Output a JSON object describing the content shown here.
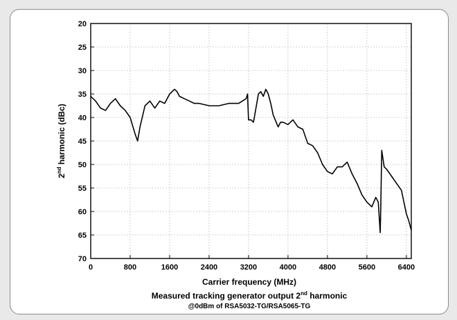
{
  "chart_data": {
    "type": "line",
    "xlabel": "Carrier frequency (MHz)",
    "ylabel_main": "2",
    "ylabel_sup": "nd",
    "ylabel_rest": " harmonic (dBc)",
    "caption_line1_main": "Measured tracking generator output 2",
    "caption_line1_sup": "nd",
    "caption_line1_rest": " harmonic",
    "caption_line2": "@0dBm of RSA5032-TG/RSA5065-TG",
    "xlim": [
      0,
      6500
    ],
    "ylim": [
      20,
      70
    ],
    "y_inverted": true,
    "grid": true,
    "x_ticks": [
      0,
      800,
      1600,
      2400,
      3200,
      4000,
      4800,
      5600,
      6400
    ],
    "y_ticks": [
      20,
      25,
      30,
      35,
      40,
      45,
      50,
      55,
      60,
      65,
      70
    ],
    "series": [
      {
        "color": "#000000",
        "x": [
          0,
          100,
          200,
          300,
          400,
          500,
          600,
          700,
          800,
          900,
          950,
          1000,
          1100,
          1200,
          1300,
          1400,
          1500,
          1550,
          1600,
          1700,
          1750,
          1800,
          1900,
          2000,
          2100,
          2200,
          2400,
          2600,
          2800,
          3000,
          3150,
          3180,
          3200,
          3250,
          3300,
          3400,
          3450,
          3500,
          3550,
          3600,
          3650,
          3700,
          3800,
          3850,
          3900,
          4000,
          4100,
          4200,
          4300,
          4400,
          4500,
          4600,
          4700,
          4800,
          4900,
          5000,
          5100,
          5200,
          5300,
          5400,
          5500,
          5600,
          5700,
          5780,
          5830,
          5870,
          5880,
          5900,
          5950,
          6000,
          6100,
          6200,
          6300,
          6350,
          6400,
          6450,
          6500
        ],
        "values": [
          35.5,
          36.5,
          38.0,
          38.5,
          37.0,
          36.0,
          37.5,
          38.5,
          40.0,
          43.5,
          45.0,
          42.0,
          37.5,
          36.5,
          38.0,
          36.5,
          37.0,
          36.0,
          35.0,
          34.0,
          34.5,
          35.5,
          36.0,
          36.5,
          37.0,
          37.0,
          37.5,
          37.5,
          37.0,
          37.0,
          36.0,
          35.0,
          40.5,
          40.5,
          41.0,
          35.0,
          34.5,
          35.5,
          34.0,
          35.0,
          37.0,
          39.5,
          42.0,
          41.0,
          41.0,
          41.5,
          40.5,
          42.0,
          42.5,
          45.5,
          46.0,
          47.5,
          50.0,
          51.5,
          52.0,
          50.5,
          50.5,
          49.5,
          52.0,
          54.0,
          56.5,
          58.0,
          59.0,
          57.0,
          58.0,
          64.5,
          60.0,
          47.0,
          50.5,
          51.0,
          52.5,
          54.0,
          55.5,
          58.0,
          60.5,
          62.0,
          64.0
        ]
      }
    ]
  }
}
